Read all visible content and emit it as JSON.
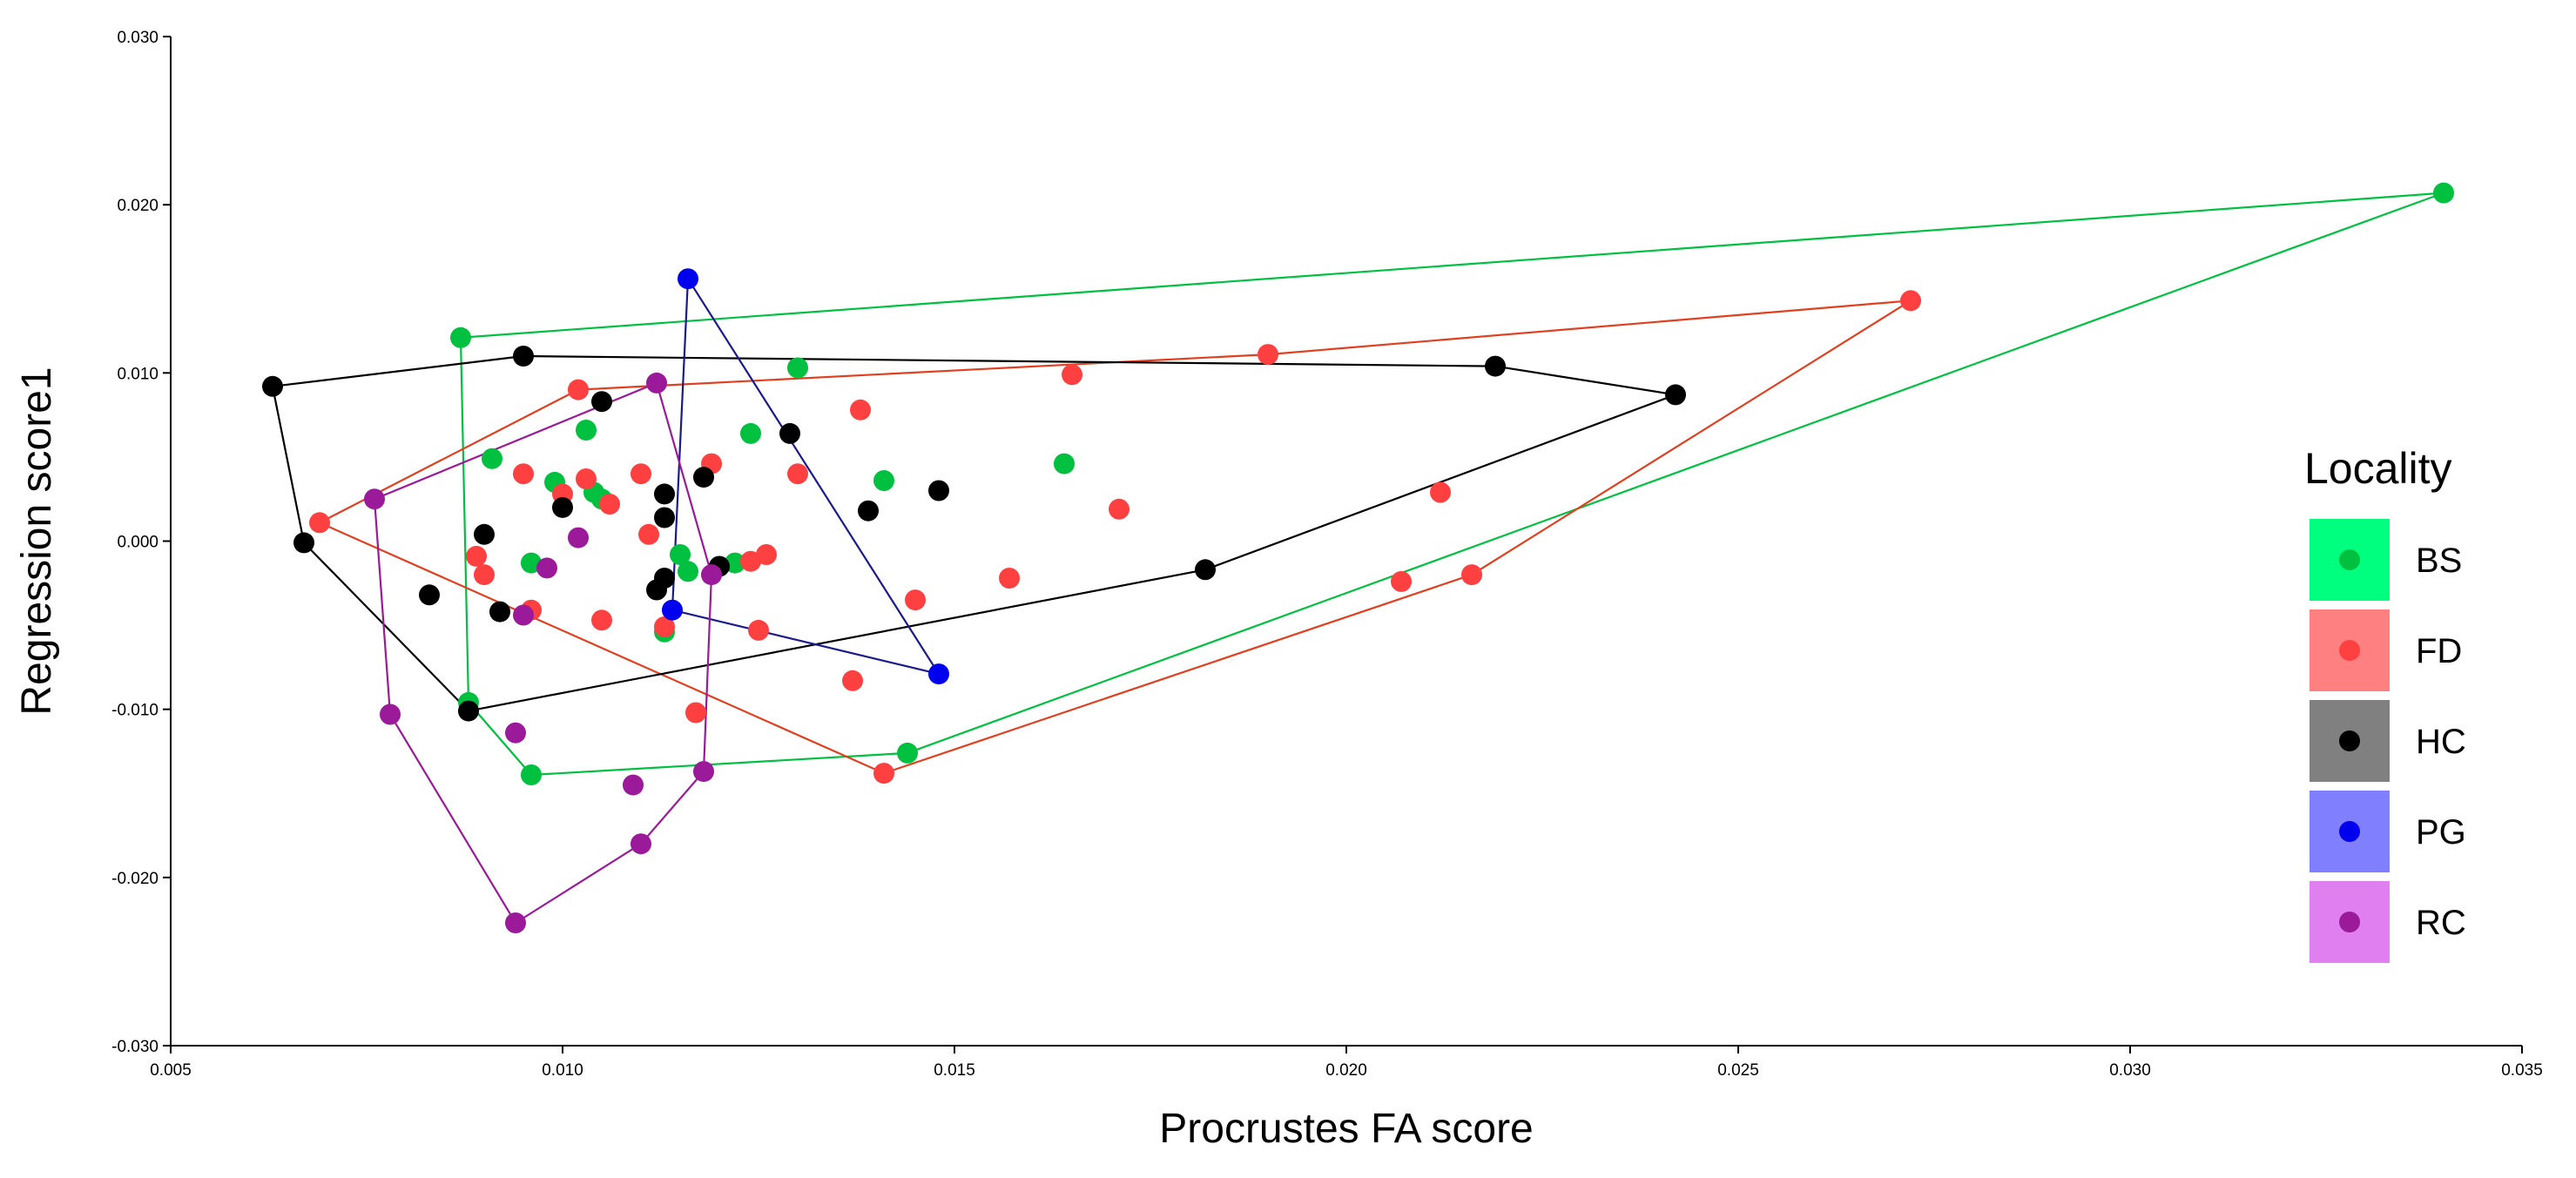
{
  "chart_data": {
    "type": "scatter",
    "title": "",
    "xlabel": "Procrustes FA score",
    "ylabel": "Regression score1",
    "xlim": [
      0.005,
      0.035
    ],
    "ylim": [
      -0.03,
      0.03
    ],
    "xticks": [
      0.005,
      0.01,
      0.015,
      0.02,
      0.025,
      0.03,
      0.035
    ],
    "xtick_labels": [
      "0.005",
      "0.010",
      "0.015",
      "0.020",
      "0.025",
      "0.030",
      "0.035"
    ],
    "yticks": [
      -0.03,
      -0.02,
      -0.01,
      0.0,
      0.01,
      0.02,
      0.03
    ],
    "ytick_labels": [
      "-0.030",
      "-0.020",
      "-0.010",
      "0.000",
      "0.010",
      "0.020",
      "0.030"
    ],
    "grid": false,
    "legend": {
      "title": "Locality",
      "position": "right"
    },
    "series": [
      {
        "name": "BS",
        "point_color": "#00c040",
        "hull_color": "#00c040",
        "legend_bg": "#00ff7f",
        "points": [
          [
            0.034,
            0.0207
          ],
          [
            0.0087,
            0.0121
          ],
          [
            0.013,
            0.0103
          ],
          [
            0.0103,
            0.0066
          ],
          [
            0.0124,
            0.0064
          ],
          [
            0.0164,
            0.0046
          ],
          [
            0.0091,
            0.0049
          ],
          [
            0.0141,
            0.0036
          ],
          [
            0.0099,
            0.0035
          ],
          [
            0.0104,
            0.0029
          ],
          [
            0.0105,
            0.0025
          ],
          [
            0.0115,
            -0.0008
          ],
          [
            0.0116,
            -0.0018
          ],
          [
            0.0096,
            -0.0013
          ],
          [
            0.0122,
            -0.0013
          ],
          [
            0.0113,
            -0.0054
          ],
          [
            0.0088,
            -0.0096
          ],
          [
            0.0096,
            -0.0139
          ],
          [
            0.0144,
            -0.0126
          ]
        ],
        "hull": [
          [
            0.034,
            0.0207
          ],
          [
            0.0087,
            0.0121
          ],
          [
            0.0088,
            -0.0096
          ],
          [
            0.0096,
            -0.0139
          ],
          [
            0.0144,
            -0.0126
          ]
        ]
      },
      {
        "name": "FD",
        "point_color": "#ff4040",
        "hull_color": "#e04020",
        "legend_bg": "#ff8080",
        "points": [
          [
            0.0272,
            0.0143
          ],
          [
            0.019,
            0.0111
          ],
          [
            0.0165,
            0.0099
          ],
          [
            0.0102,
            0.009
          ],
          [
            0.0138,
            0.0078
          ],
          [
            0.0119,
            0.0046
          ],
          [
            0.013,
            0.004
          ],
          [
            0.0095,
            0.004
          ],
          [
            0.011,
            0.004
          ],
          [
            0.0103,
            0.0037
          ],
          [
            0.01,
            0.0028
          ],
          [
            0.0106,
            0.0022
          ],
          [
            0.0171,
            0.0019
          ],
          [
            0.0212,
            0.0029
          ],
          [
            0.0069,
            0.0011
          ],
          [
            0.0111,
            0.0004
          ],
          [
            0.0089,
            -0.0009
          ],
          [
            0.0126,
            -0.0008
          ],
          [
            0.0124,
            -0.0012
          ],
          [
            0.009,
            -0.002
          ],
          [
            0.0157,
            -0.0022
          ],
          [
            0.0216,
            -0.002
          ],
          [
            0.0207,
            -0.0024
          ],
          [
            0.0145,
            -0.0035
          ],
          [
            0.0096,
            -0.0041
          ],
          [
            0.0105,
            -0.0047
          ],
          [
            0.0125,
            -0.0053
          ],
          [
            0.0113,
            -0.0051
          ],
          [
            0.0137,
            -0.0083
          ],
          [
            0.0117,
            -0.0102
          ],
          [
            0.0141,
            -0.0138
          ]
        ],
        "hull": [
          [
            0.0272,
            0.0143
          ],
          [
            0.019,
            0.0111
          ],
          [
            0.0102,
            0.009
          ],
          [
            0.0069,
            0.0011
          ],
          [
            0.0141,
            -0.0138
          ],
          [
            0.0216,
            -0.002
          ]
        ]
      },
      {
        "name": "HC",
        "point_color": "#000000",
        "hull_color": "#000000",
        "legend_bg": "#808080",
        "points": [
          [
            0.0063,
            0.0092
          ],
          [
            0.0095,
            0.011
          ],
          [
            0.0219,
            0.0104
          ],
          [
            0.0242,
            0.0087
          ],
          [
            0.0105,
            0.0083
          ],
          [
            0.0129,
            0.0064
          ],
          [
            0.0118,
            0.0038
          ],
          [
            0.0148,
            0.003
          ],
          [
            0.0113,
            0.0028
          ],
          [
            0.01,
            0.002
          ],
          [
            0.0139,
            0.0018
          ],
          [
            0.0113,
            0.0014
          ],
          [
            0.009,
            0.0004
          ],
          [
            0.0067,
            -0.0001
          ],
          [
            0.0182,
            -0.0017
          ],
          [
            0.012,
            -0.0015
          ],
          [
            0.0113,
            -0.0022
          ],
          [
            0.0112,
            -0.0029
          ],
          [
            0.0083,
            -0.0032
          ],
          [
            0.0092,
            -0.0042
          ],
          [
            0.0088,
            -0.0101
          ]
        ],
        "hull": [
          [
            0.0063,
            0.0092
          ],
          [
            0.0095,
            0.011
          ],
          [
            0.0219,
            0.0104
          ],
          [
            0.0242,
            0.0087
          ],
          [
            0.0182,
            -0.0017
          ],
          [
            0.0088,
            -0.0101
          ],
          [
            0.0067,
            -0.0001
          ]
        ]
      },
      {
        "name": "PG",
        "point_color": "#0000ee",
        "hull_color": "#1a1a8c",
        "legend_bg": "#8080ff",
        "points": [
          [
            0.0116,
            0.0156
          ],
          [
            0.0114,
            -0.0041
          ],
          [
            0.0148,
            -0.0079
          ]
        ],
        "hull": [
          [
            0.0116,
            0.0156
          ],
          [
            0.0148,
            -0.0079
          ],
          [
            0.0114,
            -0.0041
          ]
        ]
      },
      {
        "name": "RC",
        "point_color": "#9a1a9a",
        "hull_color": "#9a1a9a",
        "legend_bg": "#e080f0",
        "points": [
          [
            0.0112,
            0.0094
          ],
          [
            0.0076,
            0.0025
          ],
          [
            0.0102,
            0.0002
          ],
          [
            0.0098,
            -0.0016
          ],
          [
            0.0119,
            -0.002
          ],
          [
            0.0095,
            -0.0044
          ],
          [
            0.0078,
            -0.0103
          ],
          [
            0.0094,
            -0.0114
          ],
          [
            0.0118,
            -0.0137
          ],
          [
            0.0109,
            -0.0145
          ],
          [
            0.011,
            -0.018
          ],
          [
            0.0094,
            -0.0227
          ]
        ],
        "hull": [
          [
            0.0112,
            0.0094
          ],
          [
            0.0119,
            -0.002
          ],
          [
            0.0118,
            -0.0137
          ],
          [
            0.011,
            -0.018
          ],
          [
            0.0094,
            -0.0227
          ],
          [
            0.0078,
            -0.0103
          ],
          [
            0.0076,
            0.0025
          ]
        ]
      }
    ]
  }
}
